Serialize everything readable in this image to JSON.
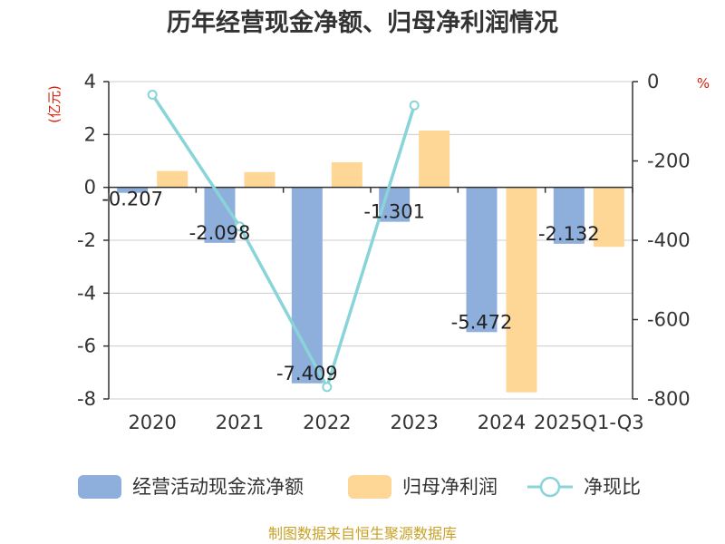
{
  "title": "历年经营现金净额、归母净利润情况",
  "source_note": "制图数据来自恒生聚源数据库",
  "colors": {
    "ocf": "#8eaedc",
    "profit": "#fed796",
    "ratio": "#89d4d8",
    "unit": "#d81e06",
    "source": "#c9a227"
  },
  "chart_data": {
    "type": "bar",
    "categories": [
      "2020",
      "2021",
      "2022",
      "2023",
      "2024",
      "2025Q1-Q3"
    ],
    "left_axis": {
      "unit": "(亿元)",
      "range": [
        -8,
        4
      ],
      "ticks": [
        "4",
        "2",
        "0",
        "-2",
        "-4",
        "-6",
        "-8"
      ]
    },
    "right_axis": {
      "unit": "%",
      "range": [
        -800,
        0
      ],
      "ticks": [
        "0",
        "-200",
        "-400",
        "-600",
        "-800"
      ]
    },
    "series": [
      {
        "name": "经营活动现金流净额",
        "type": "bar",
        "axis": "left",
        "values": [
          -0.207,
          -2.098,
          -7.409,
          -1.301,
          -5.472,
          -2.132
        ],
        "labels": [
          "-0.207",
          "-2.098",
          "-7.409",
          "-1.301",
          "-5.472",
          "-2.132"
        ]
      },
      {
        "name": "归母净利润",
        "type": "bar",
        "axis": "left",
        "values": [
          0.62,
          0.58,
          0.95,
          2.15,
          -7.75,
          -2.25
        ]
      },
      {
        "name": "净现比",
        "type": "line",
        "axis": "right",
        "values": [
          -33,
          -365,
          -770,
          -60,
          null,
          null
        ]
      }
    ],
    "legend_position": "bottom"
  }
}
